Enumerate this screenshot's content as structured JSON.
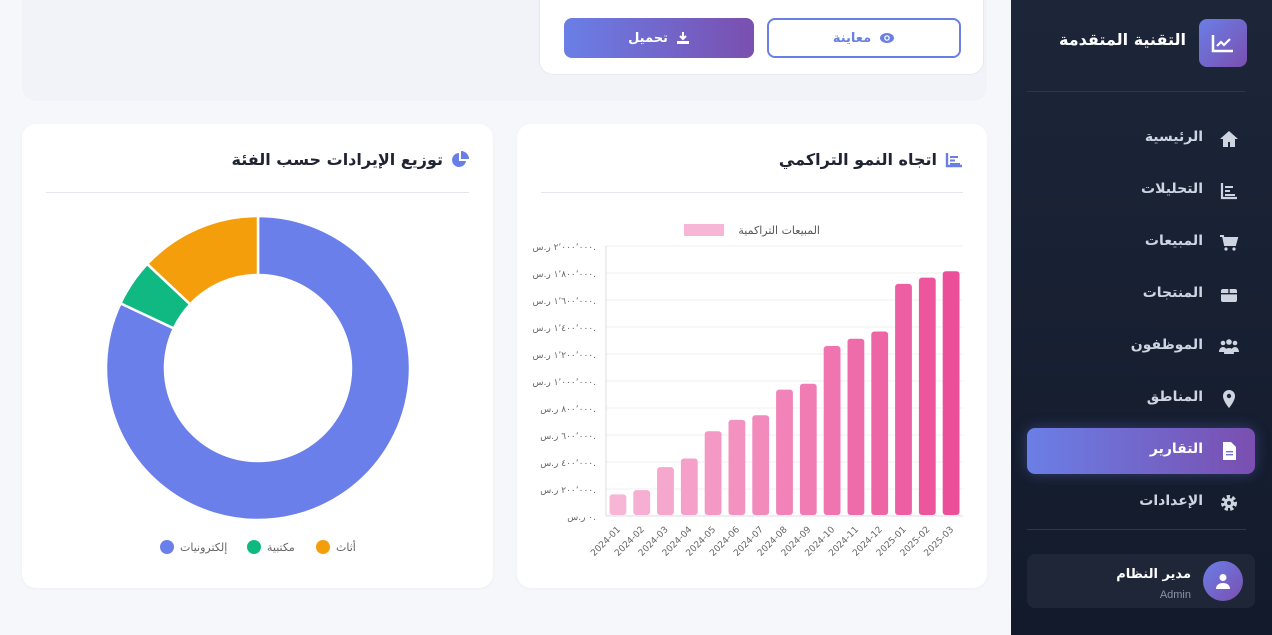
{
  "sidebar": {
    "brand": "التقنية المتقدمة",
    "items": [
      {
        "label": "الرئيسية",
        "icon": "home-icon"
      },
      {
        "label": "التحليلات",
        "icon": "analytics-icon"
      },
      {
        "label": "المبيعات",
        "icon": "cart-icon"
      },
      {
        "label": "المنتجات",
        "icon": "box-icon"
      },
      {
        "label": "الموظفون",
        "icon": "users-icon"
      },
      {
        "label": "المناطق",
        "icon": "map-pin-icon"
      },
      {
        "label": "التقارير",
        "icon": "file-icon",
        "active": true
      },
      {
        "label": "الإعدادات",
        "icon": "gear-icon"
      }
    ],
    "user": {
      "name": "مدير النظام",
      "role": "Admin"
    }
  },
  "actions": {
    "preview_label": "معاينة",
    "download_label": "تحميل"
  },
  "colors": {
    "accent": "#6a7fe6",
    "accent2": "#7a4fb0",
    "sidebar": "#1d2639"
  },
  "chart_data": [
    {
      "type": "bar",
      "title": "اتجاه النمو التراكمي",
      "legend": [
        "المبيعات التراكمية"
      ],
      "legend_position": "top",
      "categories": [
        "2024-01",
        "2024-02",
        "2024-03",
        "2024-04",
        "2024-05",
        "2024-06",
        "2024-07",
        "2024-08",
        "2024-09",
        "2024-10",
        "2024-11",
        "2024-12",
        "2025-01",
        "2025-02",
        "2025-03"
      ],
      "series": [
        {
          "name": "المبيعات التراكمية",
          "values": [
            160000,
            192000,
            362000,
            426000,
            628000,
            712000,
            746000,
            936000,
            980000,
            1259000,
            1313000,
            1367000,
            1719000,
            1766000,
            1813000
          ]
        }
      ],
      "ylim": [
        0,
        2000000
      ],
      "yticks": [
        "٠ ر.س.",
        "٢٠٠٬٠٠٠ ر.س.",
        "٤٠٠٬٠٠٠ ر.س.",
        "٦٠٠٬٠٠٠ ر.س.",
        "٨٠٠٬٠٠٠ ر.س.",
        "١٬٠٠٠٬٠٠٠ ر.س.",
        "١٬٢٠٠٬٠٠٠ ر.س.",
        "١٬٤٠٠٬٠٠٠ ر.س.",
        "١٬٦٠٠٬٠٠٠ ر.س.",
        "١٬٨٠٠٬٠٠٠ ر.س.",
        "٢٬٠٠٠٬٠٠٠ ر.س."
      ],
      "grid": true,
      "color_from": "#f7b6d6",
      "color_to": "#ec4f99"
    },
    {
      "type": "pie",
      "title": "توزيع الإيرادات حسب الفئة",
      "donut": true,
      "legend_position": "bottom",
      "slices": [
        {
          "label": "إلكترونيات",
          "value": 82,
          "color": "#6a7fe9"
        },
        {
          "label": "مكتبية",
          "value": 5,
          "color": "#10b981"
        },
        {
          "label": "أثاث",
          "value": 13,
          "color": "#f59e0b"
        }
      ]
    }
  ]
}
